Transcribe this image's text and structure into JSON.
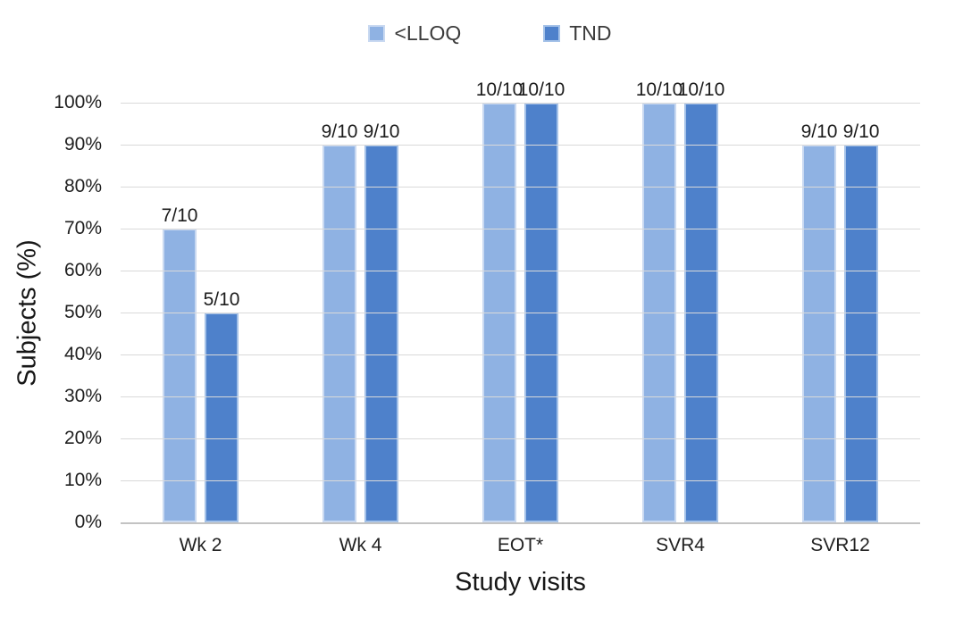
{
  "chart_data": {
    "type": "bar",
    "title": "",
    "xlabel": "Study visits",
    "ylabel": "Subjects (%)",
    "categories": [
      "Wk 2",
      "Wk 4",
      "EOT*",
      "SVR4",
      "SVR12"
    ],
    "series": [
      {
        "name": "<LLOQ",
        "color": "#8FB2E3",
        "border_color": "#C9D9F1",
        "values": [
          70,
          90,
          100,
          100,
          90
        ],
        "data_labels": [
          "7/10",
          "9/10",
          "10/10",
          "10/10",
          "9/10"
        ]
      },
      {
        "name": "TND",
        "color": "#4E81CB",
        "border_color": "#A5C2E8",
        "values": [
          50,
          90,
          100,
          100,
          90
        ],
        "data_labels": [
          "5/10",
          "9/10",
          "10/10",
          "10/10",
          "9/10"
        ]
      }
    ],
    "ylim": [
      0,
      100
    ],
    "ytick_step": 10,
    "ytick_labels": [
      "0%",
      "10%",
      "20%",
      "30%",
      "40%",
      "50%",
      "60%",
      "70%",
      "80%",
      "90%",
      "100%"
    ],
    "grid": true,
    "legend_position": "top-center",
    "colors": {
      "gridline": "#d9d9d9",
      "axis_line": "#c3c3c3",
      "text": "#212121",
      "background": "#ffffff"
    }
  }
}
